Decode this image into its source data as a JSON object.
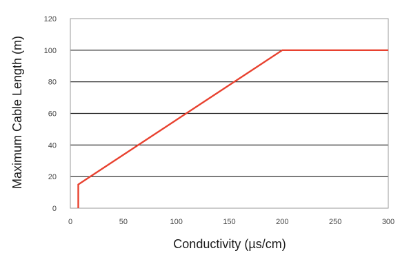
{
  "chart_data": {
    "type": "line",
    "title": "",
    "xlabel": "Conductivity (µs/cm)",
    "ylabel": "Maximum Cable Length (m)",
    "xlim": [
      0,
      300
    ],
    "ylim": [
      0,
      120
    ],
    "x_ticks": [
      0,
      50,
      100,
      150,
      200,
      250,
      300
    ],
    "y_ticks": [
      0,
      20,
      40,
      60,
      80,
      100,
      120
    ],
    "grid": "horizontal",
    "legend": "none",
    "series": [
      {
        "color": "#e8412f",
        "x": [
          7.5,
          7.5,
          200,
          300
        ],
        "y": [
          0,
          15,
          100,
          100
        ]
      }
    ]
  }
}
